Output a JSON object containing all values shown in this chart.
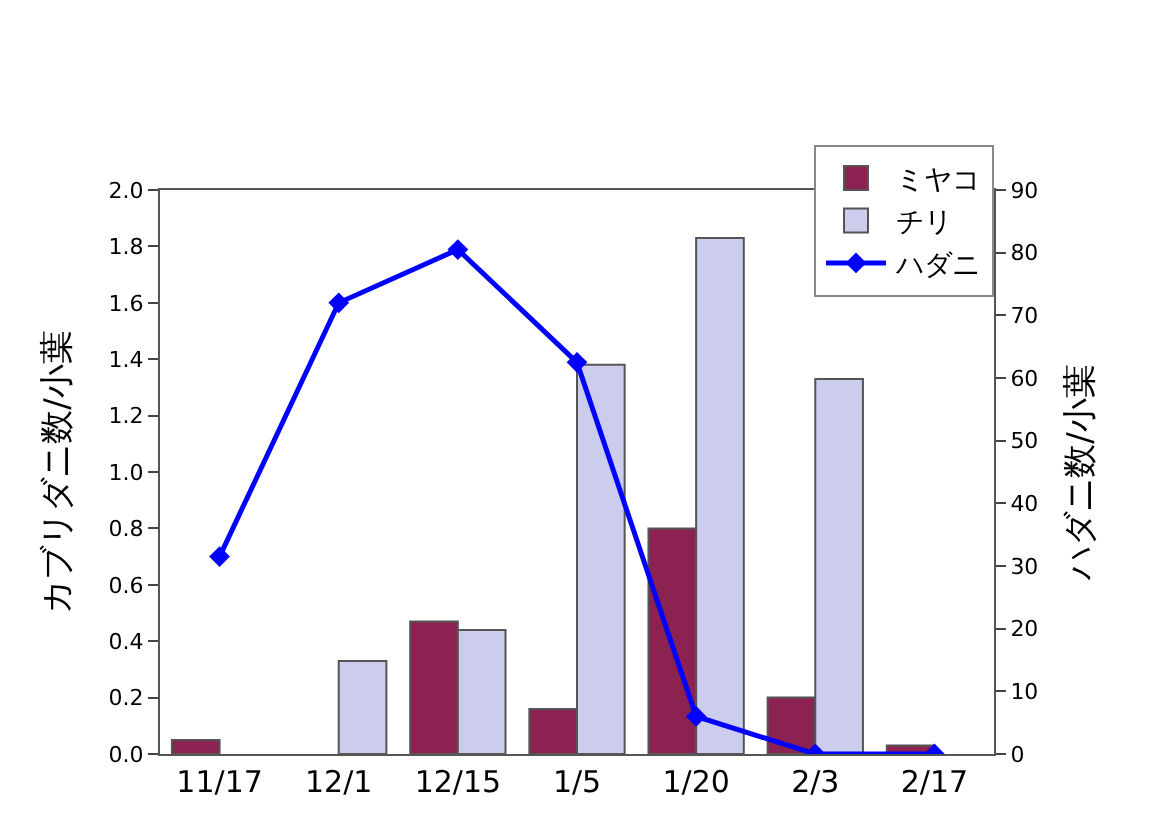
{
  "chart_data": {
    "type": "bar",
    "categories": [
      "11/17",
      "12/1",
      "12/15",
      "1/5",
      "1/20",
      "2/3",
      "2/17"
    ],
    "ylabel": "カブリダニ数/小葉",
    "y2label": "ハダニ数/小葉",
    "series": [
      {
        "name": "ミヤコ",
        "color": "#8b2252",
        "values": [
          0.05,
          null,
          0.47,
          0.16,
          0.8,
          0.2,
          0.03
        ]
      },
      {
        "name": "チリ",
        "color": "#ccccec",
        "values": [
          null,
          0.33,
          0.44,
          1.38,
          1.83,
          1.33,
          null
        ]
      },
      {
        "name": "ハダニ",
        "type": "line",
        "axis": "y2",
        "color": "#0000ff",
        "marker": "diamond",
        "values": [
          31.5,
          72,
          80.5,
          62.5,
          6,
          0,
          0
        ]
      }
    ],
    "ylim": [
      0,
      2.0
    ],
    "yticks": [
      {
        "value": 0,
        "label": "0.0"
      },
      0.2,
      0.4,
      0.6,
      0.8,
      {
        "value": 1,
        "label": "1.0"
      },
      1.2,
      1.4,
      1.6,
      1.8,
      {
        "value": 2,
        "label": "2.0"
      }
    ],
    "y2lim": [
      0,
      90
    ],
    "y2ticks": [
      0,
      10,
      20,
      30,
      40,
      50,
      60,
      70,
      80,
      90
    ],
    "legend": "top right"
  }
}
